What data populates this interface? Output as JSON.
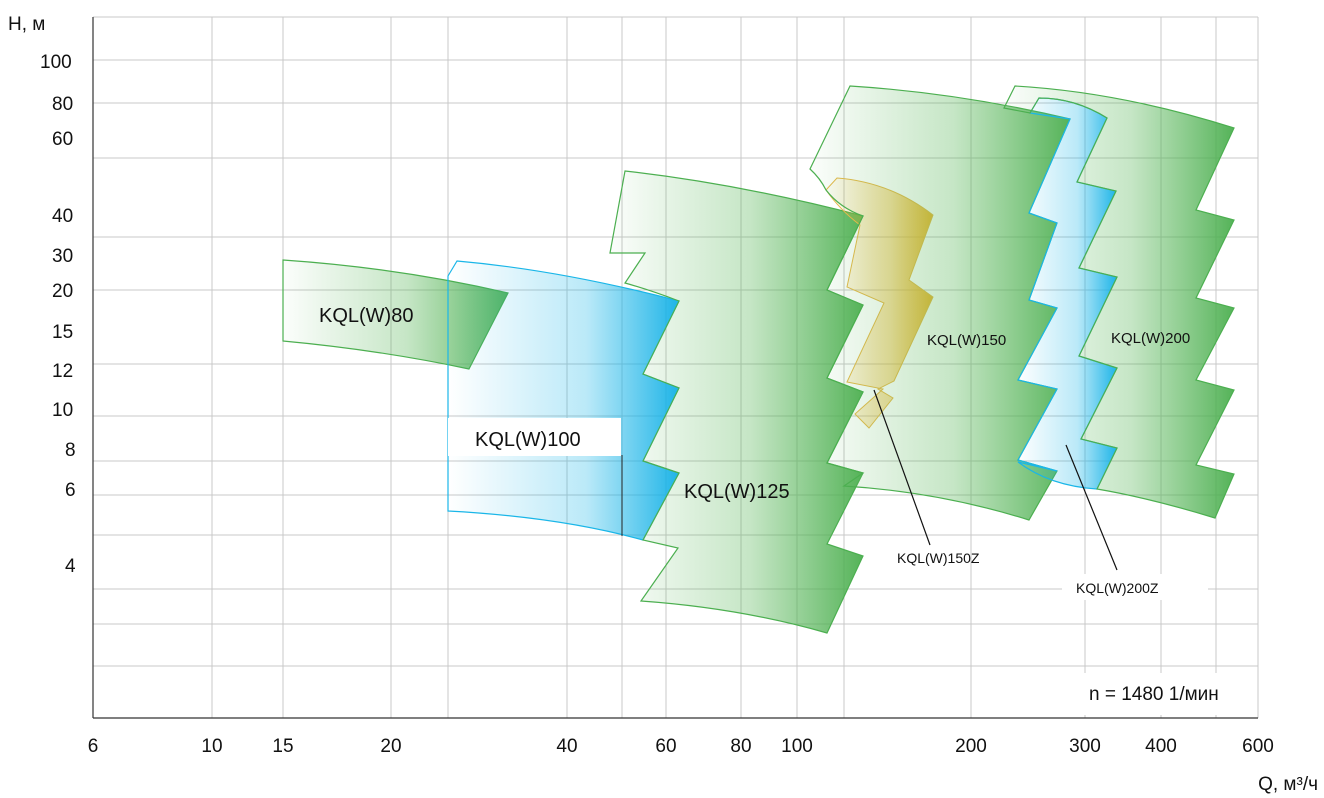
{
  "chart_data": {
    "type": "area",
    "x_axis": {
      "label": "Q, м³/ч",
      "scale": "log",
      "ticks": [
        "6",
        "10",
        "15",
        "20",
        "40",
        "60",
        "80",
        "100",
        "200",
        "300",
        "400",
        "600"
      ]
    },
    "y_axis": {
      "label": "H, м",
      "scale": "log",
      "ticks": [
        "4",
        "6",
        "8",
        "10",
        "12",
        "15",
        "20",
        "30",
        "40",
        "60",
        "80",
        "100"
      ]
    },
    "grid": true,
    "annotation": "n = 1480 1/мин",
    "series": [
      {
        "name": "KQL(W)80",
        "color": "#5cb85c",
        "style": "gradient"
      },
      {
        "name": "KQL(W)100",
        "color": "#1ab6e8",
        "style": "gradient"
      },
      {
        "name": "KQL(W)125",
        "color": "#5cb85c",
        "style": "gradient"
      },
      {
        "name": "KQL(W)150Z",
        "color": "#f0b428",
        "style": "gradient"
      },
      {
        "name": "KQL(W)150",
        "color": "#5cb85c",
        "style": "gradient"
      },
      {
        "name": "KQL(W)200Z",
        "color": "#1ab6e8",
        "style": "gradient"
      },
      {
        "name": "KQL(W)200",
        "color": "#5cb85c",
        "style": "gradient"
      }
    ]
  }
}
